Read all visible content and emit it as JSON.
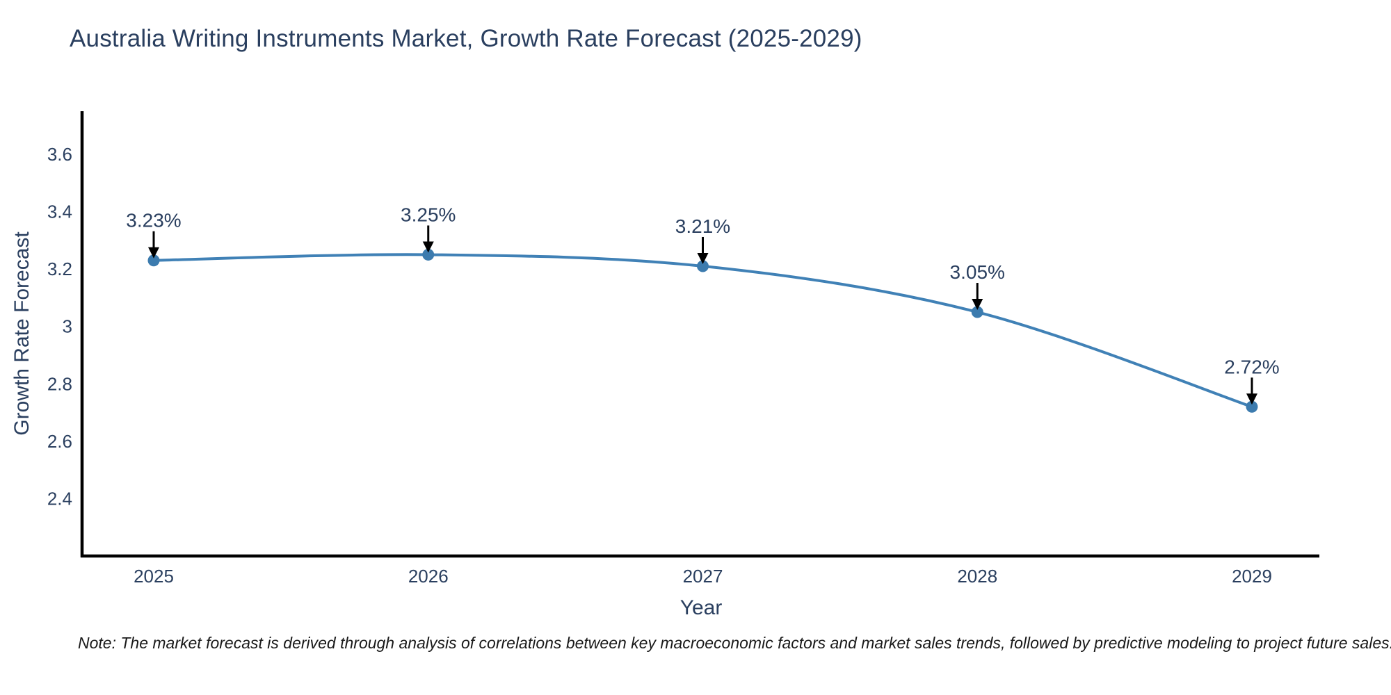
{
  "note": "Note: The market forecast is derived through analysis of correlations between key macroeconomic factors and market sales trends, followed by predictive modeling to project future sales.",
  "chart_data": {
    "type": "line",
    "title": "Australia Writing Instruments Market, Growth Rate Forecast (2025-2029)",
    "xlabel": "Year",
    "ylabel": "Growth Rate Forecast",
    "categories": [
      "2025",
      "2026",
      "2027",
      "2028",
      "2029"
    ],
    "series": [
      {
        "name": "Growth Rate Forecast",
        "values": [
          3.23,
          3.25,
          3.21,
          3.05,
          2.72
        ],
        "point_labels": [
          "3.23%",
          "3.25%",
          "3.21%",
          "3.05%",
          "2.72%"
        ]
      }
    ],
    "ytick_values": [
      3.6,
      3.4,
      3.2,
      3.0,
      2.8,
      2.6,
      2.4
    ],
    "ytick_labels": [
      "3.6",
      "3.4",
      "3.2",
      "3",
      "2.8",
      "2.6",
      "2.4"
    ],
    "ylim": [
      2.2,
      3.75
    ],
    "grid": false,
    "legend": "none",
    "line_style": "smooth",
    "marker": "circle",
    "annotation_style": "label-with-down-arrow",
    "colors": {
      "line": "#4081b6",
      "marker": "#3c7bae",
      "axis": "#000000",
      "tick_text": "#2a3f5f",
      "title_text": "#2a3f5f",
      "axis_label_text": "#2a3f5f",
      "annotation_text": "#2a3f5f",
      "arrow": "#000000",
      "note_text": "#1a1a1a",
      "background": "#ffffff"
    }
  }
}
